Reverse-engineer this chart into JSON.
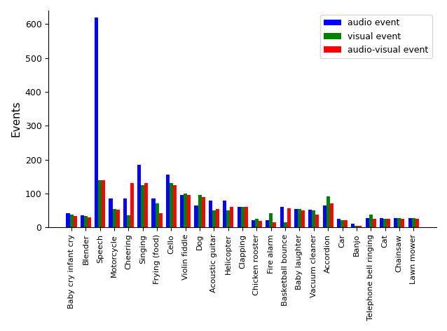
{
  "categories": [
    "Baby cry infant cry",
    "Blender",
    "Speech",
    "Motorcycle",
    "Cheering",
    "Singing",
    "Frying (food)",
    "Cello",
    "Violin fiddle",
    "Dog",
    "Acoustic guitar",
    "Helicopter",
    "Clapping",
    "Chicken rooster",
    "Fire alarm",
    "Basketball bounce",
    "Baby laughter",
    "Vacuum cleaner",
    "Accordion",
    "Car",
    "Banjo",
    "Telephone bell ringing",
    "Cat",
    "Chainsaw",
    "Lawn mower"
  ],
  "audio": [
    42,
    35,
    620,
    85,
    85,
    185,
    85,
    155,
    95,
    65,
    80,
    80,
    60,
    20,
    20,
    60,
    55,
    52,
    65,
    25,
    10,
    28,
    27,
    28,
    27
  ],
  "visual": [
    38,
    33,
    140,
    55,
    35,
    125,
    70,
    130,
    100,
    95,
    50,
    50,
    60,
    25,
    42,
    15,
    55,
    50,
    92,
    22,
    5,
    38,
    25,
    27,
    27
  ],
  "audio_visual": [
    33,
    30,
    140,
    52,
    130,
    130,
    42,
    125,
    95,
    90,
    55,
    60,
    60,
    18,
    15,
    57,
    50,
    38,
    70,
    20,
    5,
    25,
    25,
    25,
    25
  ],
  "audio_color": "#0000ff",
  "visual_color": "#008000",
  "av_color": "#ff0000",
  "ylabel": "Events",
  "legend_labels": [
    "audio event",
    "visual event",
    "audio-visual event"
  ],
  "bar_width": 0.25,
  "ylim": [
    0,
    640
  ]
}
